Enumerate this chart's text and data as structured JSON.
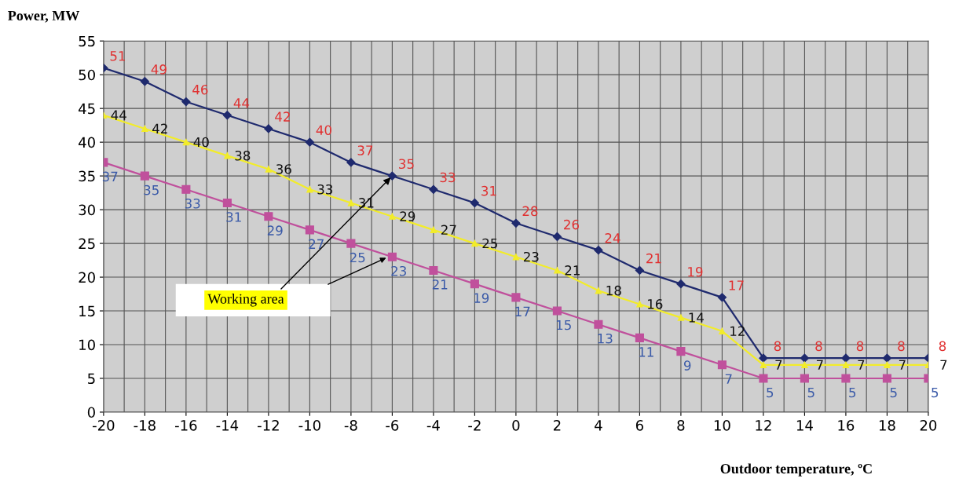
{
  "chart_data": {
    "type": "line",
    "xlabel": "Outdoor temperature, ºC",
    "ylabel": "Power, MW",
    "x": [
      -20,
      -18,
      -16,
      -14,
      -12,
      -10,
      -8,
      -6,
      -4,
      -2,
      0,
      2,
      4,
      6,
      8,
      10,
      12,
      14,
      16,
      18,
      20
    ],
    "series": [
      {
        "color": "#1f2a6e",
        "marker": "diamond",
        "values": [
          51,
          49,
          46,
          44,
          42,
          40,
          37,
          35,
          33,
          31,
          28,
          26,
          24,
          21,
          19,
          17,
          8,
          8,
          8,
          8,
          8
        ]
      },
      {
        "color": "#f2ec2a",
        "marker": "triangle",
        "values": [
          44,
          42,
          40,
          38,
          36,
          33,
          31,
          29,
          27,
          25,
          23,
          21,
          18,
          16,
          14,
          12,
          7,
          7,
          7,
          7,
          7
        ]
      },
      {
        "color": "#c0509c",
        "marker": "square",
        "values": [
          37,
          35,
          33,
          31,
          29,
          27,
          25,
          23,
          21,
          19,
          17,
          15,
          13,
          11,
          9,
          7,
          5,
          5,
          5,
          5,
          5
        ]
      }
    ],
    "data_labels": true,
    "annotations": [
      {
        "text": "Working area",
        "x": -6,
        "y": 35
      }
    ],
    "xlim": [
      -20,
      20
    ],
    "xticks": [
      -20,
      -18,
      -16,
      -14,
      -12,
      -10,
      -8,
      -6,
      -4,
      -2,
      0,
      2,
      4,
      6,
      8,
      10,
      12,
      14,
      16,
      18,
      20
    ],
    "ylim": [
      0,
      55
    ],
    "yticks": [
      0,
      5,
      10,
      15,
      20,
      25,
      30,
      35,
      40,
      45,
      50,
      55
    ],
    "grid": true,
    "legend": false,
    "line_style": "solid"
  }
}
